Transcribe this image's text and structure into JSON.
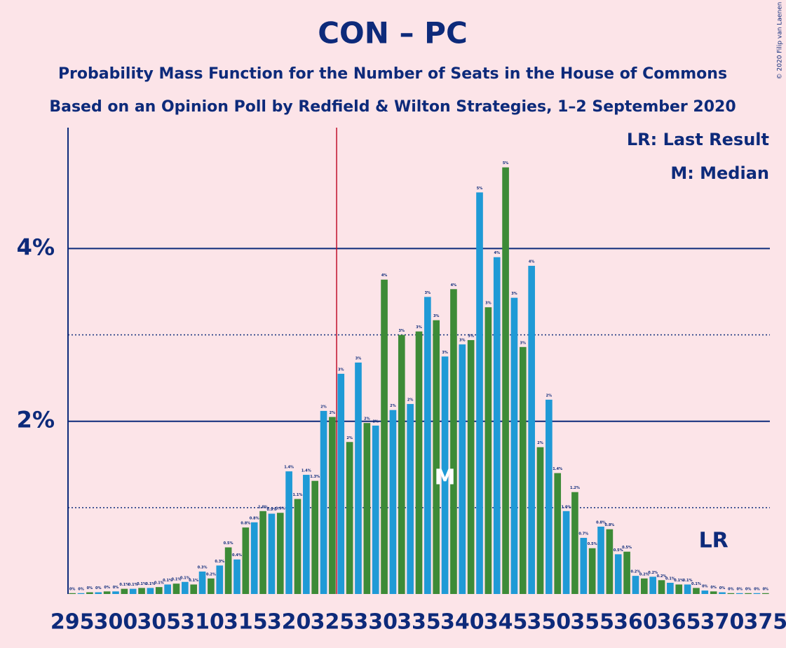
{
  "chart_data": {
    "type": "bar",
    "title": "CON – PC",
    "subtitle": [
      "Probability Mass Function for the Number of Seats in the House of Commons",
      "Based on an Opinion Poll by Redfield & Wilton Strategies, 1–2 September 2020"
    ],
    "legend": [
      "LR: Last Result",
      "M: Median"
    ],
    "credit": "© 2020 Filip van Laenen",
    "x": [
      295,
      296,
      297,
      298,
      299,
      300,
      301,
      302,
      303,
      304,
      305,
      306,
      307,
      308,
      309,
      310,
      311,
      312,
      313,
      314,
      315,
      316,
      317,
      318,
      319,
      320,
      321,
      322,
      323,
      324,
      325,
      326,
      327,
      328,
      329,
      330,
      331,
      332,
      333,
      334,
      335,
      336,
      337,
      338,
      339,
      340,
      341,
      342,
      343,
      344,
      345,
      346,
      347,
      348,
      349,
      350,
      351,
      352,
      353,
      354,
      355,
      356,
      357,
      358,
      359,
      360,
      361,
      362,
      363,
      364,
      365,
      366,
      367,
      368,
      369,
      370,
      371,
      372,
      373,
      374,
      375
    ],
    "values": [
      0.01,
      0.01,
      0.02,
      0.02,
      0.03,
      0.03,
      0.06,
      0.06,
      0.07,
      0.07,
      0.08,
      0.11,
      0.12,
      0.14,
      0.11,
      0.26,
      0.18,
      0.33,
      0.54,
      0.4,
      0.77,
      0.83,
      0.96,
      0.93,
      0.94,
      1.42,
      1.1,
      1.38,
      1.31,
      2.12,
      2.05,
      2.55,
      1.76,
      2.68,
      1.98,
      1.95,
      3.64,
      2.13,
      3.0,
      2.2,
      3.04,
      3.44,
      3.17,
      2.75,
      3.53,
      2.89,
      2.94,
      4.65,
      3.32,
      3.9,
      4.94,
      3.43,
      2.86,
      3.8,
      1.7,
      2.25,
      1.4,
      0.96,
      1.18,
      0.65,
      0.53,
      0.78,
      0.75,
      0.46,
      0.49,
      0.21,
      0.18,
      0.2,
      0.16,
      0.13,
      0.11,
      0.11,
      0.07,
      0.04,
      0.03,
      0.02,
      0.01,
      0.01,
      0.01,
      0.01,
      0.01
    ],
    "value_labels": [
      "0%",
      "0%",
      "0%",
      "0%",
      "0%",
      "0%",
      "0.1%",
      "0.1%",
      "0.1%",
      "0.1%",
      "0.1%",
      "0.1%",
      "0.1%",
      "0.1%",
      "0.1%",
      "0.3%",
      "0.2%",
      "0.3%",
      "0.5%",
      "0.4%",
      "0.8%",
      "0.8%",
      "1.0%",
      "0.9%",
      "0.9%",
      "1.4%",
      "1.1%",
      "1.4%",
      "1.3%",
      "2%",
      "2%",
      "3%",
      "2%",
      "3%",
      "2%",
      "2%",
      "4%",
      "2%",
      "3%",
      "2%",
      "3%",
      "3%",
      "3%",
      "3%",
      "4%",
      "3%",
      "3%",
      "5%",
      "3%",
      "4%",
      "5%",
      "3%",
      "3%",
      "4%",
      "2%",
      "2%",
      "1.4%",
      "1.0%",
      "1.2%",
      "0.7%",
      "0.5%",
      "0.8%",
      "0.8%",
      "0.5%",
      "0.5%",
      "0.2%",
      "0.2%",
      "0.2%",
      "0.2%",
      "0.1%",
      "0.1%",
      "0.1%",
      "0.1%",
      "0%",
      "0%",
      "0%",
      "0%",
      "0%",
      "0%",
      "0%",
      "0%"
    ],
    "colors": {
      "even": "#1f9ad6",
      "odd": "#3d8b37"
    },
    "xlim": [
      294.5,
      375.5
    ],
    "xticks": [
      295,
      300,
      305,
      310,
      315,
      320,
      325,
      330,
      335,
      340,
      345,
      350,
      355,
      360,
      365,
      370,
      375
    ],
    "ylim": [
      0,
      5.4
    ],
    "yticks": [
      {
        "value": 2,
        "label": "2%"
      },
      {
        "value": 4,
        "label": "4%"
      }
    ],
    "minor_grid": [
      1,
      3
    ],
    "majority": 326,
    "annotations": [
      {
        "text": "M",
        "x": 338
      },
      {
        "text": "LR",
        "x": 369
      }
    ]
  }
}
